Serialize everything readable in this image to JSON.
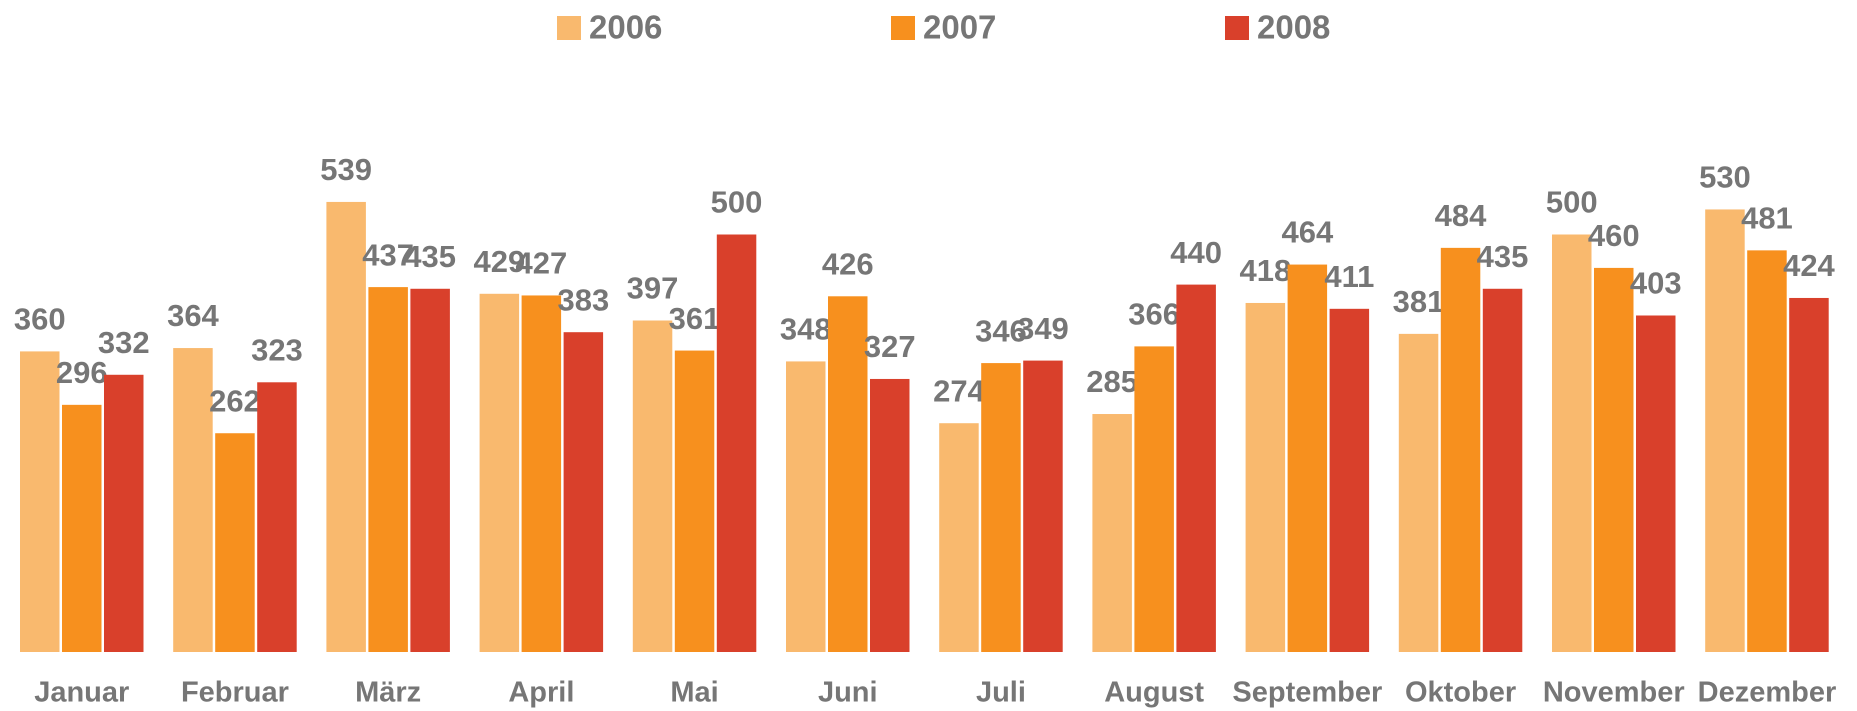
{
  "chart_data": {
    "type": "bar",
    "categories": [
      "Januar",
      "Februar",
      "März",
      "April",
      "Mai",
      "Juni",
      "Juli",
      "August",
      "September",
      "Oktober",
      "November",
      "Dezember"
    ],
    "series": [
      {
        "name": "2006",
        "color": "#f9b96e",
        "values": [
          360,
          364,
          539,
          429,
          397,
          348,
          274,
          285,
          418,
          381,
          500,
          530
        ]
      },
      {
        "name": "2007",
        "color": "#f7901e",
        "values": [
          296,
          262,
          437,
          427,
          361,
          426,
          346,
          366,
          464,
          484,
          460,
          481
        ]
      },
      {
        "name": "2008",
        "color": "#d9402b",
        "values": [
          332,
          323,
          435,
          383,
          500,
          327,
          349,
          440,
          411,
          435,
          403,
          424
        ]
      }
    ],
    "ylim": [
      0,
      600
    ],
    "legend": "top"
  }
}
